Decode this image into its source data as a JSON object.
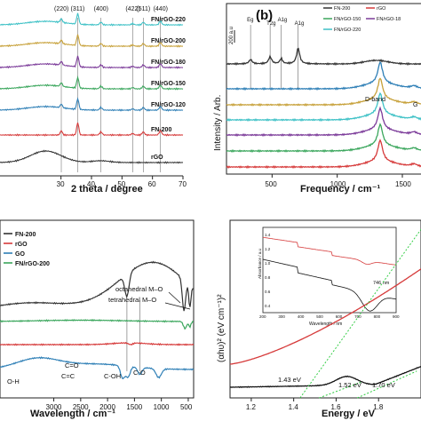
{
  "chart_data": [
    {
      "type": "line",
      "panel_label": "",
      "xlabel": "2 theta / degree",
      "ylabel": "",
      "xlim": [
        10,
        70
      ],
      "x_ticks": [
        "30",
        "40",
        "50",
        "60",
        "70"
      ],
      "x_ticks_val": [
        30,
        40,
        50,
        60,
        70
      ],
      "peaks": [
        {
          "label": "(220)",
          "x": 30.1
        },
        {
          "label": "(311)",
          "x": 35.5
        },
        {
          "label": "(400)",
          "x": 43.1
        },
        {
          "label": "(422)",
          "x": 53.5
        },
        {
          "label": "(511)",
          "x": 57.0
        },
        {
          "label": "(440)",
          "x": 62.6
        }
      ],
      "series": [
        {
          "name": "FN/rGO-220",
          "color": "#3ec1c6"
        },
        {
          "name": "FN/rGO-200",
          "color": "#c7a13a"
        },
        {
          "name": "FN/rGO-180",
          "color": "#7b3a99"
        },
        {
          "name": "FN/rGO-150",
          "color": "#3aa65c"
        },
        {
          "name": "FN/rGO-120",
          "color": "#2e7fb6"
        },
        {
          "name": "FN-200",
          "color": "#d63a3a"
        },
        {
          "name": "rGO",
          "color": "#333333"
        }
      ]
    },
    {
      "type": "line",
      "panel_label": "(b)",
      "xlabel": "Frequency / cm⁻¹",
      "ylabel": "Intensity / Arb.",
      "scale_label": "200 a.u",
      "xlim": [
        150,
        1650
      ],
      "x_ticks": [
        "500",
        "1000",
        "1500"
      ],
      "x_ticks_val": [
        500,
        1000,
        1500
      ],
      "raman_modes": [
        {
          "label": "Eg",
          "x": 335
        },
        {
          "label": "T2g",
          "x": 485
        },
        {
          "label": "A1g",
          "x": 570
        },
        {
          "label": "A1g",
          "x": 700
        }
      ],
      "band_labels": [
        "D-band",
        "G"
      ],
      "series": [
        {
          "name": "FN-200",
          "color": "#333333"
        },
        {
          "name": "rGO",
          "color": "#d63a3a"
        },
        {
          "name": "FN/rGO-150",
          "color": "#3aa65c"
        },
        {
          "name": "FN/rGO-18",
          "color": "#7b3a99"
        },
        {
          "name": "FN/rGO-220",
          "color": "#3ec1c6"
        },
        {
          "name": "",
          "color": "#c7a13a"
        },
        {
          "name": "",
          "color": "#2e7fb6"
        }
      ]
    },
    {
      "type": "line",
      "panel_label": "",
      "xlabel": "Wavelength / cm⁻¹",
      "ylabel": "",
      "xlim": [
        4000,
        400
      ],
      "x_ticks": [
        "3000",
        "2500",
        "2000",
        "1500",
        "1000",
        "500"
      ],
      "x_ticks_val": [
        3000,
        2500,
        2000,
        1500,
        1000,
        500
      ],
      "annotations": [
        "octahedral M–O",
        "tetrahedral M–O",
        "O-H",
        "C=O",
        "C=C",
        "C-OH",
        "C-O"
      ],
      "series": [
        {
          "name": "FN-200",
          "color": "#333333"
        },
        {
          "name": "rGO",
          "color": "#d63a3a"
        },
        {
          "name": "GO",
          "color": "#2e7fb6"
        },
        {
          "name": "FN/rGO-200",
          "color": "#3aa65c"
        }
      ]
    },
    {
      "type": "line",
      "panel_label": "",
      "xlabel": "Energy / eV",
      "ylabel": "(αhυ)² (eV cm⁻¹)²",
      "xlim": [
        1.1,
        2.0
      ],
      "x_ticks": [
        "1.2",
        "1.4",
        "1.6",
        "1.8"
      ],
      "x_ticks_val": [
        1.2,
        1.4,
        1.6,
        1.8
      ],
      "band_gaps": [
        "1.43 eV",
        "1.52 eV",
        "1.70 eV"
      ],
      "series": [
        {
          "name": "",
          "color": "#d63a3a"
        },
        {
          "name": "",
          "color": "#111111"
        }
      ],
      "inset": {
        "xlabel": "Wavelength / nm",
        "ylabel": "Absorbance / a.u",
        "x_ticks": [
          "200",
          "300",
          "400",
          "500",
          "600",
          "700",
          "800",
          "900"
        ],
        "y_ticks": [
          "1.4",
          "1.2",
          "1.0",
          "0.8",
          "0.6",
          "0.4"
        ],
        "annotation": "746 nm"
      }
    }
  ]
}
